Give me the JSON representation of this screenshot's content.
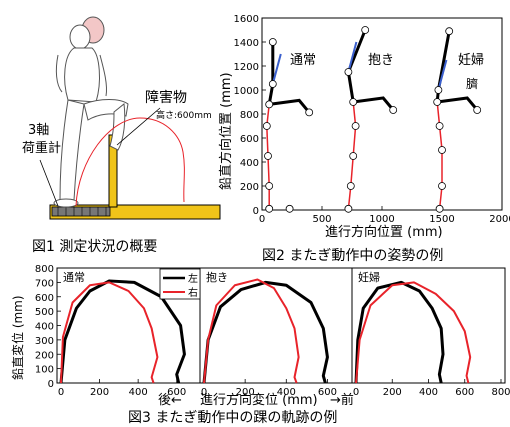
{
  "fig1": {
    "caption": "図1 測定状況の概要",
    "sensor_label_line1": "3軸",
    "sensor_label_line2": "荷重計",
    "obstacle_label": "障害物",
    "obstacle_height": "高さ:600mm"
  },
  "fig2": {
    "caption": "図2 またぎ動作中の姿勢の例",
    "xlabel": "進行方向位置 (mm)",
    "ylabel": "鉛直方向位置 (mm)",
    "labels": {
      "normal": "通常",
      "carry": "抱き",
      "pregnant": "妊婦",
      "belly": "臍"
    },
    "x_ticks": [
      "0",
      "500",
      "1000",
      "1500",
      "2000"
    ],
    "y_ticks": [
      "0",
      "200",
      "400",
      "600",
      "800",
      "1000",
      "1200",
      "1400",
      "1600"
    ]
  },
  "fig3": {
    "caption": "図3 またぎ動作中の踝の軌跡の例",
    "ylabel": "鉛直変位 (mm)",
    "xlabel_back": "後←",
    "xlabel_mid": "進行方向変位 (mm)",
    "xlabel_front": "→前",
    "legend_left": "左",
    "legend_right": "右",
    "panel_labels": [
      "通常",
      "抱き",
      "妊婦"
    ],
    "x_ticks": [
      "0",
      "200",
      "400",
      "600"
    ],
    "x_ticks_last": [
      "0",
      "200",
      "400",
      "600",
      "800"
    ],
    "y_ticks": [
      "0",
      "100",
      "200",
      "300",
      "400",
      "500",
      "600",
      "700",
      "800"
    ],
    "colors": {
      "left": "#000000",
      "right": "#e8232a"
    }
  },
  "chart_data": [
    {
      "type": "line",
      "title": "",
      "xlabel": "進行方向位置 (mm)",
      "ylabel": "鉛直方向位置 (mm)",
      "xlim": [
        0,
        2000
      ],
      "ylim": [
        0,
        1600
      ],
      "series": [
        {
          "name": "通常",
          "x": [
            60,
            60,
            50,
            40,
            60,
            90,
            90,
            230
          ],
          "y": [
            10,
            200,
            450,
            700,
            880,
            1050,
            1400,
            10
          ]
        },
        {
          "name": "抱き",
          "x": [
            720,
            740,
            760,
            780,
            760,
            720,
            860
          ],
          "y": [
            10,
            200,
            450,
            700,
            900,
            1150,
            1500
          ]
        },
        {
          "name": "妊婦",
          "x": [
            1480,
            1500,
            1500,
            1480,
            1460,
            1470,
            1560
          ],
          "y": [
            10,
            200,
            500,
            700,
            900,
            1000,
            1490
          ]
        }
      ]
    },
    {
      "type": "line",
      "title": "",
      "xlabel": "進行方向変位 (mm)",
      "ylabel": "鉛直変位 (mm)",
      "xlim": [
        0,
        700
      ],
      "ylim": [
        0,
        800
      ],
      "series": [
        {
          "name": "左",
          "x": [
            0,
            20,
            80,
            150,
            250,
            380,
            520,
            620,
            640,
            600,
            610
          ],
          "y": [
            0,
            300,
            520,
            640,
            710,
            700,
            600,
            400,
            200,
            60,
            0
          ]
        },
        {
          "name": "右",
          "x": [
            0,
            10,
            60,
            150,
            250,
            350,
            430,
            470,
            500,
            470,
            480
          ],
          "y": [
            0,
            320,
            560,
            680,
            700,
            640,
            520,
            380,
            180,
            40,
            0
          ]
        }
      ]
    },
    {
      "type": "line",
      "title": "",
      "xlabel": "進行方向変位 (mm)",
      "ylabel": "鉛直変位 (mm)",
      "xlim": [
        0,
        700
      ],
      "ylim": [
        0,
        800
      ],
      "series": [
        {
          "name": "左",
          "x": [
            0,
            20,
            80,
            180,
            300,
            400,
            520,
            580,
            600,
            580,
            590
          ],
          "y": [
            0,
            300,
            530,
            650,
            700,
            680,
            560,
            380,
            180,
            50,
            0
          ]
        },
        {
          "name": "右",
          "x": [
            0,
            20,
            60,
            150,
            260,
            340,
            400,
            440,
            460,
            440,
            450
          ],
          "y": [
            0,
            300,
            540,
            680,
            720,
            660,
            520,
            380,
            180,
            40,
            0
          ]
        }
      ]
    },
    {
      "type": "line",
      "title": "",
      "xlabel": "進行方向変位 (mm)",
      "ylabel": "鉛直変位 (mm)",
      "xlim": [
        0,
        800
      ],
      "ylim": [
        0,
        800
      ],
      "series": [
        {
          "name": "左",
          "x": [
            0,
            10,
            40,
            120,
            250,
            350,
            420,
            470,
            480,
            460,
            470
          ],
          "y": [
            0,
            300,
            520,
            660,
            700,
            640,
            520,
            380,
            200,
            60,
            0
          ]
        },
        {
          "name": "右",
          "x": [
            0,
            20,
            80,
            200,
            320,
            440,
            540,
            600,
            630,
            610,
            620
          ],
          "y": [
            0,
            300,
            540,
            680,
            700,
            620,
            500,
            360,
            180,
            50,
            0
          ]
        }
      ]
    }
  ]
}
